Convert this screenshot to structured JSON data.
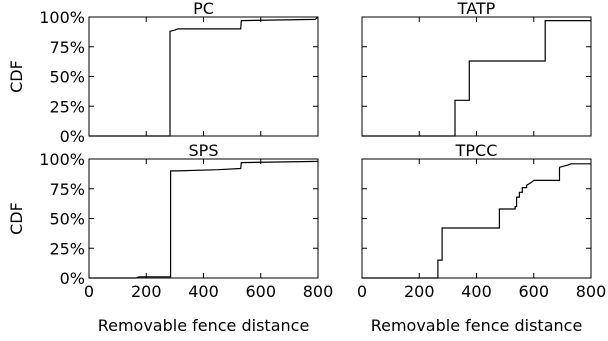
{
  "chart_data": [
    {
      "type": "line",
      "title": "PC",
      "xlabel": "",
      "ylabel": "CDF",
      "xlim": [
        0,
        800
      ],
      "ylim": [
        0,
        1
      ],
      "x_ticks": [
        "0",
        "200",
        "400",
        "600",
        "800"
      ],
      "y_ticks": [
        "0%",
        "25%",
        "50%",
        "75%",
        "100%"
      ],
      "step": true,
      "points": [
        [
          0,
          0.0
        ],
        [
          283,
          0.0
        ],
        [
          283,
          0.88
        ],
        [
          300,
          0.89
        ],
        [
          310,
          0.9
        ],
        [
          530,
          0.9
        ],
        [
          532,
          0.97
        ],
        [
          790,
          0.98
        ],
        [
          800,
          1.0
        ]
      ]
    },
    {
      "type": "line",
      "title": "TATP",
      "xlabel": "",
      "ylabel": "",
      "xlim": [
        0,
        800
      ],
      "ylim": [
        0,
        1
      ],
      "x_ticks": [
        "0",
        "200",
        "400",
        "600",
        "800"
      ],
      "y_ticks": [
        "0%",
        "25%",
        "50%",
        "75%",
        "100%"
      ],
      "step": true,
      "points": [
        [
          0,
          0.0
        ],
        [
          325,
          0.0
        ],
        [
          325,
          0.3
        ],
        [
          375,
          0.3
        ],
        [
          375,
          0.63
        ],
        [
          640,
          0.63
        ],
        [
          640,
          0.97
        ],
        [
          800,
          0.97
        ]
      ]
    },
    {
      "type": "line",
      "title": "SPS",
      "xlabel": "Removable fence distance",
      "ylabel": "CDF",
      "xlim": [
        0,
        800
      ],
      "ylim": [
        0,
        1
      ],
      "x_ticks": [
        "0",
        "200",
        "400",
        "600",
        "800"
      ],
      "y_ticks": [
        "0%",
        "25%",
        "50%",
        "75%",
        "100%"
      ],
      "step": true,
      "points": [
        [
          0,
          0.0
        ],
        [
          165,
          0.0
        ],
        [
          175,
          0.01
        ],
        [
          285,
          0.01
        ],
        [
          285,
          0.9
        ],
        [
          310,
          0.9
        ],
        [
          450,
          0.91
        ],
        [
          530,
          0.92
        ],
        [
          532,
          0.97
        ],
        [
          800,
          0.98
        ]
      ]
    },
    {
      "type": "line",
      "title": "TPCC",
      "xlabel": "Removable fence distance",
      "ylabel": "",
      "xlim": [
        0,
        800
      ],
      "ylim": [
        0,
        1
      ],
      "x_ticks": [
        "0",
        "200",
        "400",
        "600",
        "800"
      ],
      "y_ticks": [
        "0%",
        "25%",
        "50%",
        "75%",
        "100%"
      ],
      "step": true,
      "points": [
        [
          0,
          0.0
        ],
        [
          265,
          0.0
        ],
        [
          265,
          0.15
        ],
        [
          280,
          0.15
        ],
        [
          280,
          0.42
        ],
        [
          480,
          0.42
        ],
        [
          480,
          0.58
        ],
        [
          535,
          0.58
        ],
        [
          535,
          0.6
        ],
        [
          540,
          0.6
        ],
        [
          540,
          0.68
        ],
        [
          550,
          0.68
        ],
        [
          550,
          0.72
        ],
        [
          560,
          0.72
        ],
        [
          560,
          0.76
        ],
        [
          575,
          0.76
        ],
        [
          575,
          0.78
        ],
        [
          590,
          0.8
        ],
        [
          600,
          0.82
        ],
        [
          690,
          0.82
        ],
        [
          690,
          0.93
        ],
        [
          720,
          0.95
        ],
        [
          730,
          0.96
        ],
        [
          800,
          0.96
        ]
      ]
    }
  ]
}
